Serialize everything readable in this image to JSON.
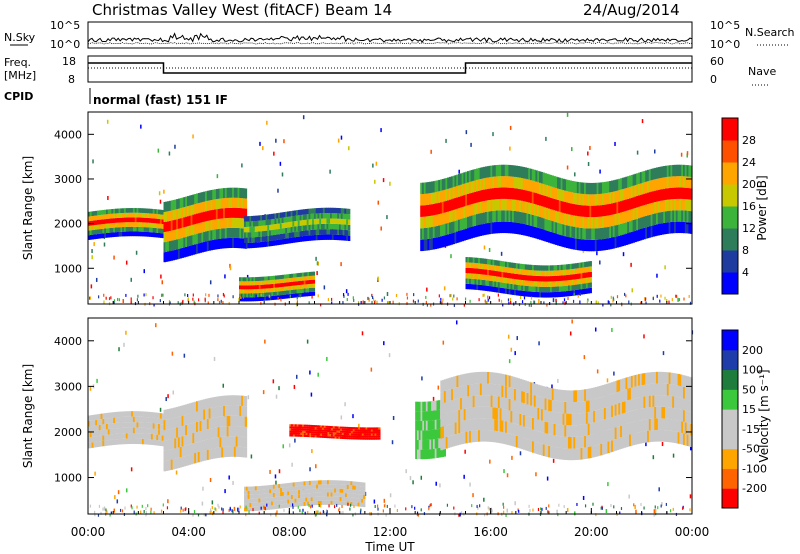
{
  "header": {
    "station": "Christmas Valley West (fitACF)",
    "beam": "Beam 14",
    "date": "24/Aug/2014"
  },
  "noise_panel": {
    "left_label": "N.Sky",
    "right_label": "N.Search",
    "left_ticks": [
      "10^5",
      "10^0"
    ],
    "right_ticks": [
      "10^5",
      "10^0"
    ]
  },
  "freq_panel": {
    "left_label_1": "Freq.",
    "left_label_2": "[MHz]",
    "right_label": "Nave",
    "left_ticks": [
      "18",
      "8"
    ],
    "right_ticks": [
      "60",
      "0"
    ]
  },
  "cpid": {
    "label": "CPID",
    "value": "normal (fast) 151 IF"
  },
  "colors": {
    "power": [
      "#0000ff",
      "#1e3ca0",
      "#2e7d5a",
      "#3cb43c",
      "#c8c800",
      "#ffa500",
      "#ff5000",
      "#ff0000"
    ],
    "velocity": [
      "#ff0000",
      "#ff6400",
      "#ffa500",
      "#c8c8c8",
      "#c8c8c8",
      "#3cc83c",
      "#1e7d3c",
      "#1e3caa",
      "#0000ff"
    ],
    "trace": "#000000"
  },
  "chart_data": [
    {
      "type": "heatmap",
      "title": "Power",
      "ylabel": "Slant Range [km]",
      "yticks": [
        "1000",
        "2000",
        "3000",
        "4000"
      ],
      "ylim": [
        200,
        4500
      ],
      "xlim": [
        "00:00",
        "24:00"
      ],
      "colorbar": {
        "label": "Power [dB]",
        "ticks": [
          "4",
          "8",
          "12",
          "16",
          "20",
          "24",
          "28"
        ],
        "range": [
          0,
          32
        ]
      },
      "features": [
        {
          "name": "band-a",
          "t_start": 0.0,
          "t_end": 3.0,
          "range_km": [
            1600,
            2300
          ],
          "peak_db": 28
        },
        {
          "name": "band-b",
          "t_start": 3.0,
          "t_end": 6.3,
          "range_km": [
            1200,
            2700
          ],
          "peak_db": 28
        },
        {
          "name": "band-c",
          "t_start": 6.2,
          "t_end": 10.4,
          "range_km": [
            1500,
            2300
          ],
          "peak_db": 16
        },
        {
          "name": "patch-d",
          "t_start": 6.0,
          "t_end": 9.0,
          "range_km": [
            300,
            900
          ],
          "peak_db": 28
        },
        {
          "name": "band-e",
          "t_start": 13.2,
          "t_end": 24.0,
          "range_km": [
            1500,
            3200
          ],
          "peak_db": 28
        },
        {
          "name": "band-f",
          "t_start": 15.0,
          "t_end": 20.0,
          "range_km": [
            400,
            1200
          ],
          "peak_db": 28
        }
      ]
    },
    {
      "type": "heatmap",
      "title": "Velocity",
      "ylabel": "Slant Range [km]",
      "yticks": [
        "1000",
        "2000",
        "3000",
        "4000"
      ],
      "ylim": [
        200,
        4500
      ],
      "xlim": [
        "00:00",
        "24:00"
      ],
      "xticks": [
        "00:00",
        "04:00",
        "08:00",
        "12:00",
        "16:00",
        "20:00",
        "00:00"
      ],
      "xlabel": "Time UT",
      "colorbar": {
        "label": "Velocity [m s⁻¹]",
        "ticks": [
          "200",
          "100",
          "50",
          "15",
          "-15",
          "-50",
          "-100",
          "-200"
        ]
      },
      "features": [
        {
          "name": "gray-band-1",
          "t_start": 0.0,
          "t_end": 3.0,
          "range_km": [
            1600,
            2400
          ],
          "velocity": 0
        },
        {
          "name": "gray-band-2",
          "t_start": 3.0,
          "t_end": 6.3,
          "range_km": [
            1200,
            2700
          ],
          "velocity": 0
        },
        {
          "name": "red-band",
          "t_start": 8.0,
          "t_end": 11.6,
          "range_km": [
            1850,
            2150
          ],
          "velocity": -200
        },
        {
          "name": "gray-band-3",
          "t_start": 6.2,
          "t_end": 11.0,
          "range_km": [
            300,
            900
          ],
          "velocity": 0
        },
        {
          "name": "green-band",
          "t_start": 13.0,
          "t_end": 14.2,
          "range_km": [
            1500,
            2900
          ],
          "velocity": 50
        },
        {
          "name": "gray-band-4",
          "t_start": 14.0,
          "t_end": 24.0,
          "range_km": [
            1500,
            3200
          ],
          "velocity": 0
        }
      ]
    }
  ]
}
